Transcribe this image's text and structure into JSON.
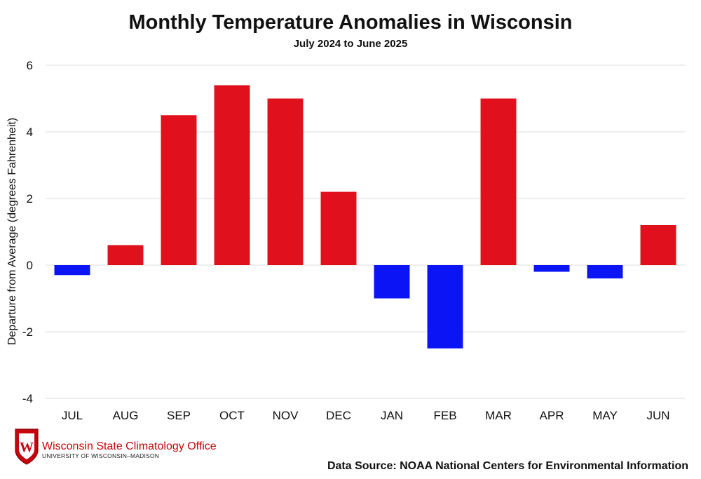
{
  "chart_data": {
    "type": "bar",
    "title": "Monthly Temperature Anomalies in Wisconsin",
    "subtitle": "July 2024 to June 2025",
    "ylabel": "Departure from Average (degrees Fahrenheit)",
    "xlabel": "",
    "categories": [
      "JUL",
      "AUG",
      "SEP",
      "OCT",
      "NOV",
      "DEC",
      "JAN",
      "FEB",
      "MAR",
      "APR",
      "MAY",
      "JUN"
    ],
    "values": [
      -0.3,
      0.6,
      4.5,
      5.4,
      5.0,
      2.2,
      -1.0,
      -2.5,
      5.0,
      -0.2,
      -0.4,
      1.2
    ],
    "ylim": [
      -4,
      6
    ],
    "yticks": [
      -4,
      -2,
      0,
      2,
      4,
      6
    ],
    "grid": true,
    "legend": "none",
    "colors": {
      "positive": "#e0101c",
      "negative": "#0a14f5"
    }
  },
  "logo": {
    "name": "Wisconsin State Climatology Office",
    "subname": "UNIVERSITY OF WISCONSIN–MADISON",
    "crest_letter": "W",
    "color": "#c5050c"
  },
  "source": "Data Source: NOAA National Centers for Environmental Information"
}
